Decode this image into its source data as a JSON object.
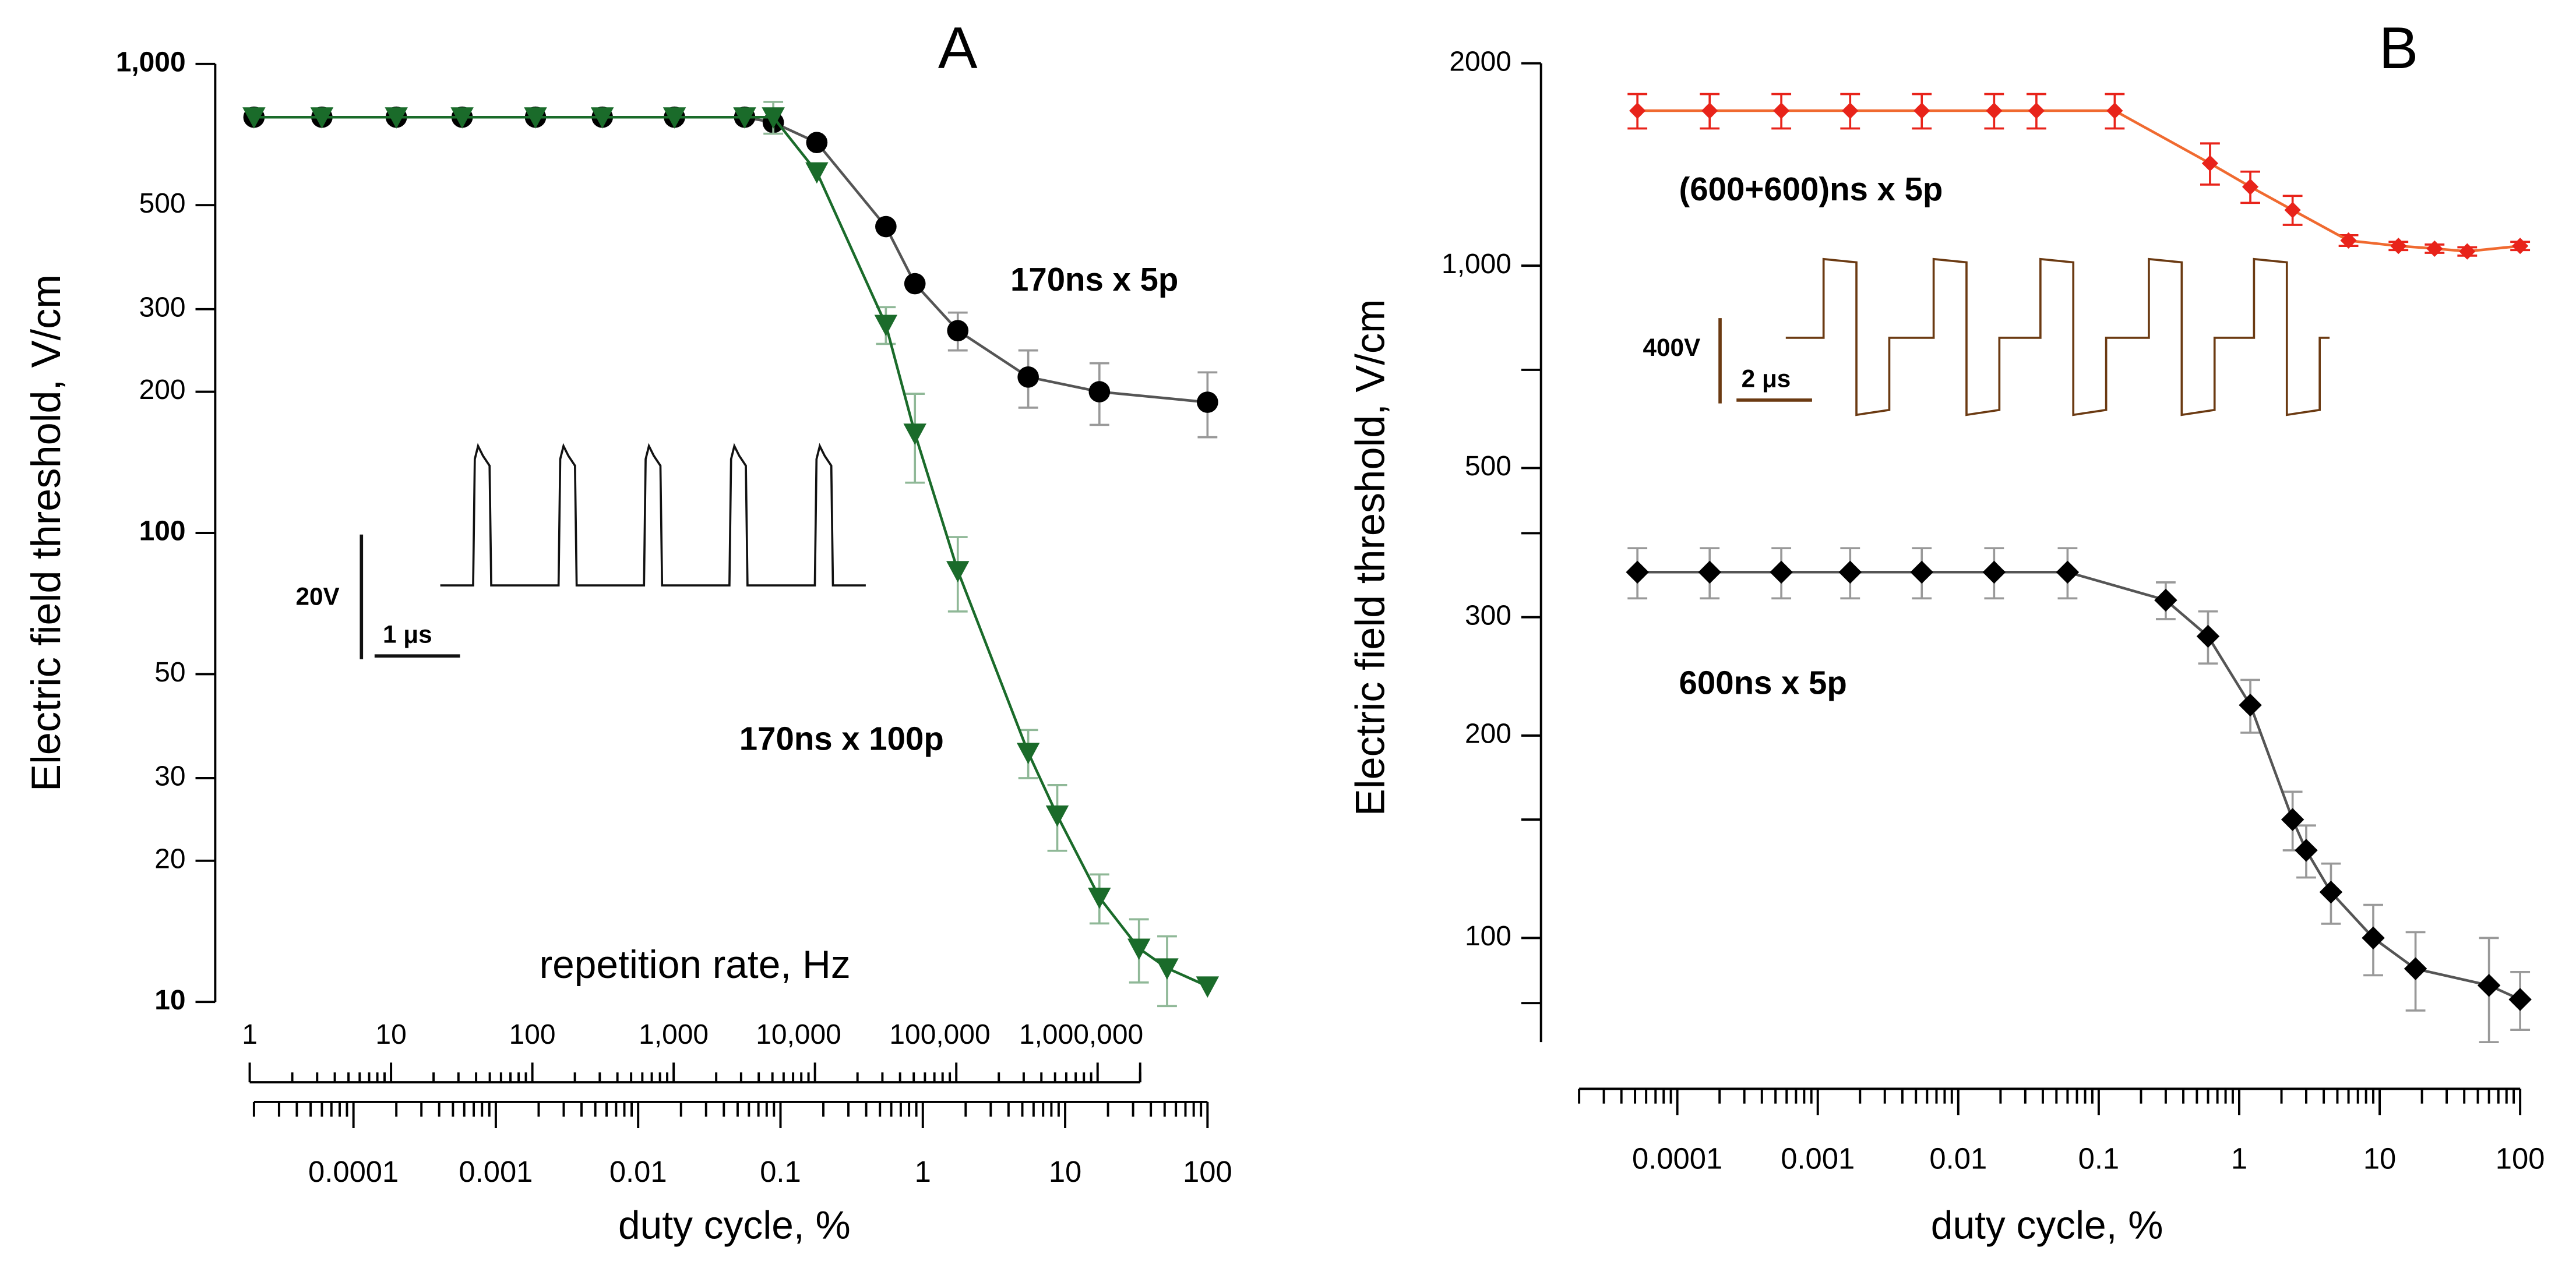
{
  "chart_data": [
    {
      "type": "line",
      "title": "A",
      "y_label": "Electric field threshold, V/cm",
      "x_label": "duty cycle, %",
      "x2_label": "repetition rate, Hz",
      "log_x": true,
      "log_y": true,
      "bold_decades": true,
      "xlim": [
        2e-05,
        100
      ],
      "xticks": [
        0.0001,
        0.001,
        0.01,
        0.1,
        1,
        10,
        100
      ],
      "x2lim": [
        1,
        2000000
      ],
      "x2ticks": [
        1,
        10,
        100,
        {
          "value": 1000,
          "label": "1,000"
        },
        {
          "value": 10000,
          "label": "10,000"
        },
        {
          "value": 100000,
          "label": "100,000"
        },
        {
          "value": 1000000,
          "label": "1,000,000"
        }
      ],
      "ylim": [
        10,
        1000
      ],
      "yticks": [
        {
          "value": 1000,
          "label": "1,000"
        },
        500,
        300,
        200,
        100,
        50,
        30,
        20,
        10
      ],
      "annotations": [
        "20V",
        "1 μs"
      ],
      "series": [
        {
          "name": "170ns x 5p",
          "color": "#000000",
          "line_color": "#555555",
          "error_color": "#999999",
          "marker": "circle",
          "x": [
            2e-05,
            6e-05,
            0.0002,
            0.00058,
            0.0019,
            0.0056,
            0.018,
            0.056,
            0.089,
            0.18,
            0.55,
            0.88,
            1.76,
            5.5,
            17.4,
            100
          ],
          "values": [
            770,
            770,
            770,
            770,
            770,
            770,
            770,
            770,
            750,
            680,
            450,
            340,
            270,
            215,
            200,
            190
          ],
          "errors": [
            0,
            0,
            0,
            0,
            0,
            0,
            0,
            0,
            0,
            0,
            0,
            0,
            25,
            30,
            30,
            30
          ]
        },
        {
          "name": "170ns x 100p",
          "color": "#1a6b2a",
          "line_color": "#1a6b2a",
          "error_color": "#8fb897",
          "marker": "triangle",
          "x": [
            2e-05,
            6e-05,
            0.0002,
            0.00058,
            0.0019,
            0.0056,
            0.018,
            0.056,
            0.089,
            0.18,
            0.55,
            0.88,
            1.76,
            5.5,
            8.8,
            17.4,
            33,
            52,
            100
          ],
          "values": [
            770,
            770,
            770,
            770,
            770,
            770,
            770,
            770,
            770,
            588,
            278,
            163,
            83,
            34,
            25,
            16.7,
            13,
            11.8,
            10.8
          ],
          "errors": [
            0,
            0,
            0,
            0,
            0,
            0,
            0,
            0,
            60,
            0,
            25,
            35,
            15,
            4,
            4,
            2,
            2,
            2,
            0
          ]
        }
      ]
    },
    {
      "type": "line",
      "title": "B",
      "y_label": "Electric field threshold, V/cm",
      "x_label": "duty cycle, %",
      "log_x": true,
      "log_y": true,
      "bold_decades": false,
      "xlim": [
        2e-05,
        100
      ],
      "xticks": [
        0.0001,
        0.001,
        0.01,
        0.1,
        1,
        10,
        100
      ],
      "ylim": [
        70,
        2000
      ],
      "yticks": [
        2000,
        {
          "value": 1000,
          "label": "1,000"
        },
        500,
        300,
        200,
        100
      ],
      "yminor": [
        700,
        400,
        150,
        80
      ],
      "annotations": [
        "400V",
        "2 μs"
      ],
      "series": [
        {
          "name": "(600+600)ns x 5p",
          "color": "#e8231a",
          "line_color": "#f06a30",
          "error_color": "#e8231a",
          "marker": "diamond-small",
          "x": [
            5.2e-05,
            0.00017,
            0.00055,
            0.0017,
            0.0055,
            0.018,
            0.036,
            0.13,
            0.62,
            1.2,
            2.4,
            6,
            13.6,
            24.6,
            42,
            100
          ],
          "values": [
            1700,
            1700,
            1700,
            1700,
            1700,
            1700,
            1700,
            1700,
            1420,
            1310,
            1210,
            1090,
            1070,
            1060,
            1050,
            1070
          ],
          "errors": [
            100,
            100,
            100,
            100,
            100,
            100,
            100,
            100,
            100,
            70,
            60,
            20,
            15,
            15,
            15,
            15
          ]
        },
        {
          "name": "600ns x 5p",
          "color": "#000000",
          "line_color": "#555555",
          "error_color": "#999999",
          "marker": "diamond",
          "x": [
            5.2e-05,
            0.00017,
            0.00055,
            0.0017,
            0.0055,
            0.018,
            0.06,
            0.3,
            0.6,
            1.2,
            2.4,
            3,
            4.5,
            9,
            18,
            60,
            100
          ],
          "values": [
            350,
            350,
            350,
            350,
            350,
            350,
            350,
            318,
            281,
            222,
            150,
            135,
            117,
            100,
            90,
            85,
            81
          ],
          "errors": [
            30,
            30,
            30,
            30,
            30,
            30,
            30,
            20,
            25,
            20,
            15,
            12,
            12,
            12,
            12,
            15,
            8
          ]
        }
      ]
    }
  ]
}
